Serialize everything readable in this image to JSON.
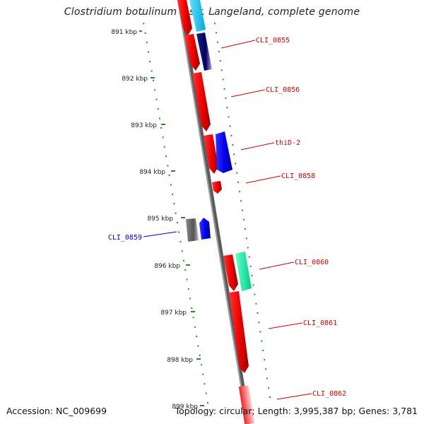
{
  "title": "Clostridium botulinum F str. Langeland, complete genome",
  "footer": {
    "accession": "Accession: NC_009699",
    "topology": "Topology: circular; Length: 3,995,387 bp; Genes: 3,781"
  },
  "ruler": {
    "ticks": [
      "891 kbp",
      "892 kbp",
      "893 kbp",
      "894 kbp",
      "895 kbp",
      "896 kbp",
      "897 kbp",
      "898 kbp",
      "899 kbp"
    ]
  },
  "genes": [
    {
      "label": "CLI_0855",
      "color": "#cc0000"
    },
    {
      "label": "CLI_0856",
      "color": "#cc0000"
    },
    {
      "label": "thiD-2",
      "color": "#cc0000"
    },
    {
      "label": "CLI_0858",
      "color": "#cc0000"
    },
    {
      "label": "CLI_0859",
      "color": "#0000cc"
    },
    {
      "label": "CLI_0860",
      "color": "#cc0000"
    },
    {
      "label": "CLI_0861",
      "color": "#cc0000"
    },
    {
      "label": "CLI_0862",
      "color": "#cc0000"
    }
  ],
  "colors": {
    "backbone": "#808080",
    "forward_cds": "#ee1111",
    "reverse_cds": "#1111ee",
    "tick_marks": "#2a8a2a"
  }
}
